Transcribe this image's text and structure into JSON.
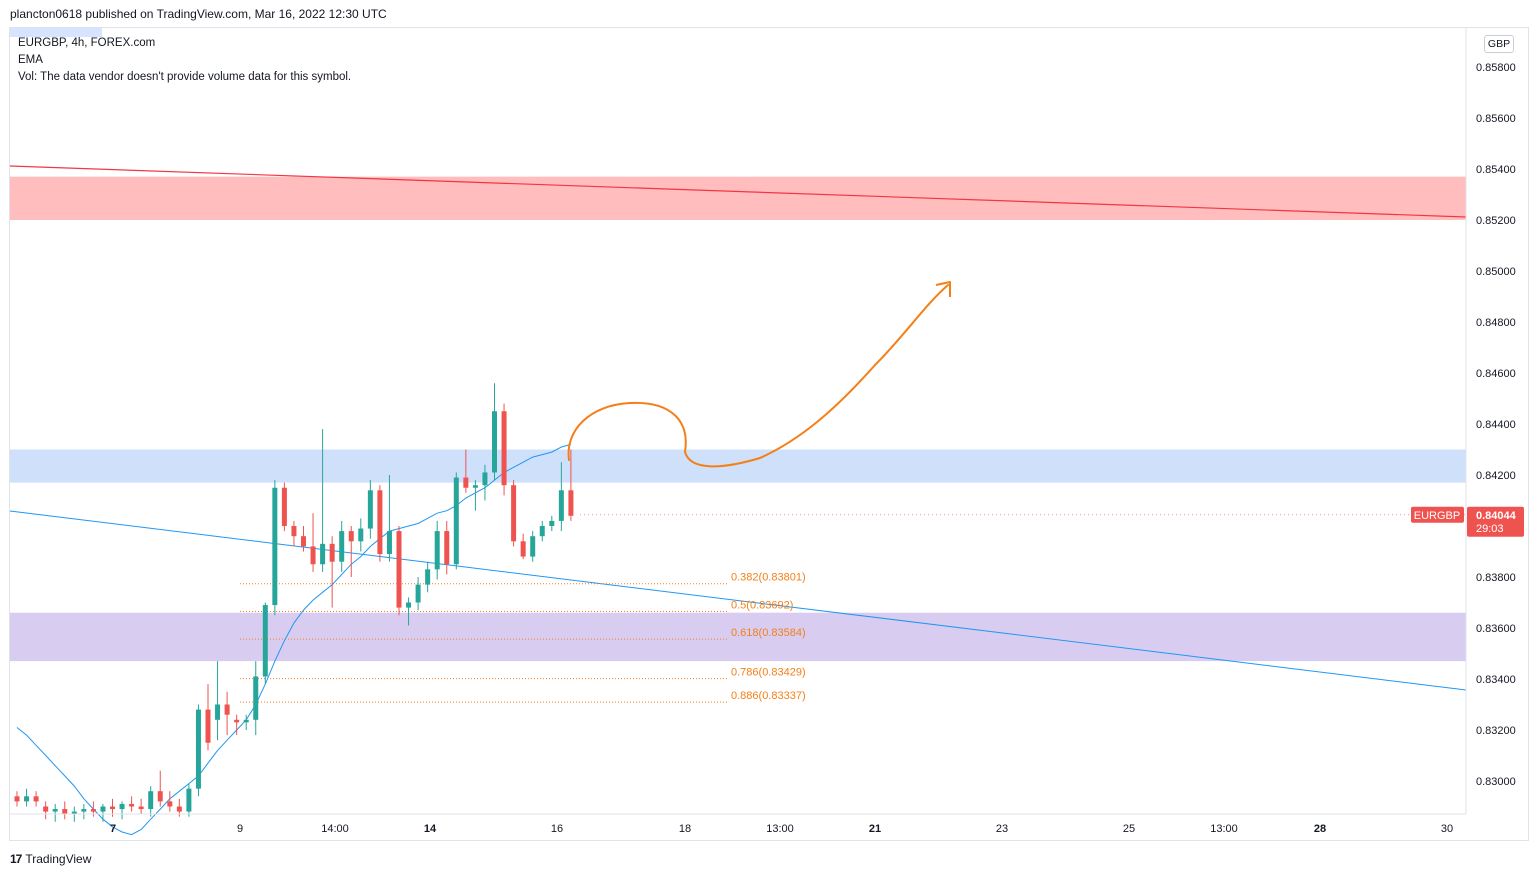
{
  "header": {
    "published": "plancton0618 published on TradingView.com, Mar 16, 2022 12:30 UTC"
  },
  "legend": {
    "symbol": "EURGBP, 4h, FOREX.com",
    "indicator": "EMA",
    "volume_note": "Vol: The data vendor doesn't provide volume data for this symbol."
  },
  "currency": "GBP",
  "footer": {
    "logo_glyph": "17",
    "brand": "TradingView"
  },
  "price_badge": {
    "symbol": "EURGBP",
    "price": "0.84044",
    "countdown": "29:03",
    "color": "#ef5350"
  },
  "colors": {
    "up": "#26a69a",
    "down": "#ef5350",
    "ema": "#2196f3",
    "resistance": "#f23645",
    "support_blue": "#cfe0fb",
    "zone_red": "#ffbdbd",
    "zone_purple": "#d8cdf0",
    "fib": "#f57f17",
    "arrow": "#f57f17"
  },
  "chart_data": {
    "type": "candlestick",
    "symbol": "EURGBP",
    "timeframe": "4h",
    "y_ticks": [
      "0.85800",
      "0.85600",
      "0.85400",
      "0.85200",
      "0.85000",
      "0.84800",
      "0.84600",
      "0.84400",
      "0.84200",
      "0.83800",
      "0.83600",
      "0.83400",
      "0.83200",
      "0.83000"
    ],
    "ylim": [
      0.8289,
      0.86
    ],
    "x_ticks": [
      "7",
      "9",
      "14:00",
      "14",
      "16",
      "18",
      "13:00",
      "21",
      "23",
      "25",
      "13:00",
      "28",
      "30"
    ],
    "bold_x_ticks": [
      "7",
      "14",
      "21",
      "28"
    ],
    "candles": [
      [
        0.8294,
        0.8296,
        0.829,
        0.8292
      ],
      [
        0.8292,
        0.8297,
        0.829,
        0.8294
      ],
      [
        0.8294,
        0.8296,
        0.829,
        0.8292
      ],
      [
        0.829,
        0.8292,
        0.8285,
        0.8288
      ],
      [
        0.8288,
        0.8291,
        0.8284,
        0.8289
      ],
      [
        0.8289,
        0.8292,
        0.8285,
        0.8287
      ],
      [
        0.8287,
        0.829,
        0.8284,
        0.8288
      ],
      [
        0.8288,
        0.8291,
        0.8285,
        0.8289
      ],
      [
        0.8289,
        0.8292,
        0.8286,
        0.8288
      ],
      [
        0.8288,
        0.8291,
        0.8284,
        0.829
      ],
      [
        0.829,
        0.8293,
        0.8286,
        0.8289
      ],
      [
        0.8289,
        0.8292,
        0.8285,
        0.8291
      ],
      [
        0.8291,
        0.8294,
        0.8288,
        0.829
      ],
      [
        0.829,
        0.8293,
        0.8287,
        0.8289
      ],
      [
        0.8289,
        0.8298,
        0.8286,
        0.8296
      ],
      [
        0.8296,
        0.8304,
        0.829,
        0.8292
      ],
      [
        0.8292,
        0.8296,
        0.8288,
        0.829
      ],
      [
        0.829,
        0.8293,
        0.8286,
        0.8288
      ],
      [
        0.8288,
        0.8299,
        0.8286,
        0.8297
      ],
      [
        0.8297,
        0.833,
        0.8294,
        0.8328
      ],
      [
        0.8328,
        0.8338,
        0.8312,
        0.8315
      ],
      [
        0.8324,
        0.8347,
        0.8316,
        0.833
      ],
      [
        0.833,
        0.8335,
        0.8318,
        0.8326
      ],
      [
        0.8324,
        0.8326,
        0.8318,
        0.8323
      ],
      [
        0.8323,
        0.8326,
        0.832,
        0.8324
      ],
      [
        0.8324,
        0.8347,
        0.8318,
        0.8341
      ],
      [
        0.8341,
        0.837,
        0.8338,
        0.8369
      ],
      [
        0.8369,
        0.8418,
        0.8365,
        0.8415
      ],
      [
        0.8415,
        0.8417,
        0.8398,
        0.84
      ],
      [
        0.84,
        0.8402,
        0.8392,
        0.8396
      ],
      [
        0.8396,
        0.84,
        0.839,
        0.8392
      ],
      [
        0.8392,
        0.8405,
        0.8382,
        0.8385
      ],
      [
        0.8385,
        0.8438,
        0.8382,
        0.8393
      ],
      [
        0.8393,
        0.8396,
        0.8368,
        0.8386
      ],
      [
        0.8386,
        0.8402,
        0.8382,
        0.8398
      ],
      [
        0.8398,
        0.84,
        0.838,
        0.8394
      ],
      [
        0.8394,
        0.8403,
        0.839,
        0.8399
      ],
      [
        0.8399,
        0.8418,
        0.8395,
        0.8414
      ],
      [
        0.8414,
        0.8416,
        0.8386,
        0.8389
      ],
      [
        0.8389,
        0.842,
        0.8386,
        0.8398
      ],
      [
        0.8398,
        0.84,
        0.8365,
        0.8368
      ],
      [
        0.8368,
        0.8372,
        0.8361,
        0.837
      ],
      [
        0.837,
        0.838,
        0.8367,
        0.8377
      ],
      [
        0.8377,
        0.8386,
        0.8374,
        0.8383
      ],
      [
        0.8383,
        0.8402,
        0.8379,
        0.8398
      ],
      [
        0.8398,
        0.8402,
        0.8381,
        0.8385
      ],
      [
        0.8385,
        0.8421,
        0.8383,
        0.8419
      ],
      [
        0.8419,
        0.843,
        0.8413,
        0.8415
      ],
      [
        0.8415,
        0.8418,
        0.8406,
        0.8416
      ],
      [
        0.8416,
        0.8424,
        0.841,
        0.8421
      ],
      [
        0.8421,
        0.8456,
        0.8418,
        0.8445
      ],
      [
        0.8445,
        0.8448,
        0.8412,
        0.8416
      ],
      [
        0.8416,
        0.8418,
        0.8392,
        0.8394
      ],
      [
        0.8394,
        0.8397,
        0.8387,
        0.8388
      ],
      [
        0.8388,
        0.8398,
        0.8386,
        0.8396
      ],
      [
        0.8396,
        0.8402,
        0.8394,
        0.84
      ],
      [
        0.84,
        0.8404,
        0.8398,
        0.8402
      ],
      [
        0.8402,
        0.8425,
        0.8398,
        0.8414
      ],
      [
        0.8414,
        0.843,
        0.8402,
        0.8404
      ]
    ],
    "ema": [
      0.8321,
      0.8318,
      0.8314,
      0.831,
      0.8306,
      0.8302,
      0.8298,
      0.8293,
      0.8289,
      0.8285,
      0.8282,
      0.828,
      0.8279,
      0.8281,
      0.8285,
      0.8289,
      0.8293,
      0.8296,
      0.8299,
      0.8302,
      0.8307,
      0.8312,
      0.8316,
      0.832,
      0.8324,
      0.833,
      0.8338,
      0.8347,
      0.8355,
      0.8362,
      0.8367,
      0.8371,
      0.8374,
      0.8377,
      0.8381,
      0.8385,
      0.8388,
      0.8392,
      0.8395,
      0.8398,
      0.8399,
      0.84,
      0.8401,
      0.8403,
      0.8405,
      0.8406,
      0.8408,
      0.8411,
      0.8413,
      0.8415,
      0.8418,
      0.8421,
      0.8423,
      0.8425,
      0.8427,
      0.8428,
      0.8429,
      0.8431,
      0.8432
    ],
    "fib_levels": [
      {
        "label": "0.382(0.83801)",
        "value": 0.83801
      },
      {
        "label": "0.5(0.83692)",
        "value": 0.83692
      },
      {
        "label": "0.618(0.83584)",
        "value": 0.83584
      },
      {
        "label": "0.786(0.83429)",
        "value": 0.83429
      },
      {
        "label": "0.886(0.83337)",
        "value": 0.83337
      }
    ],
    "zones": [
      {
        "name": "resistance-zone",
        "from": 0.852,
        "to": 0.8537
      },
      {
        "name": "support-zone-blue",
        "from": 0.8417,
        "to": 0.843
      },
      {
        "name": "demand-zone-purple",
        "from": 0.8347,
        "to": 0.8366
      }
    ],
    "last_price": 0.84044
  }
}
